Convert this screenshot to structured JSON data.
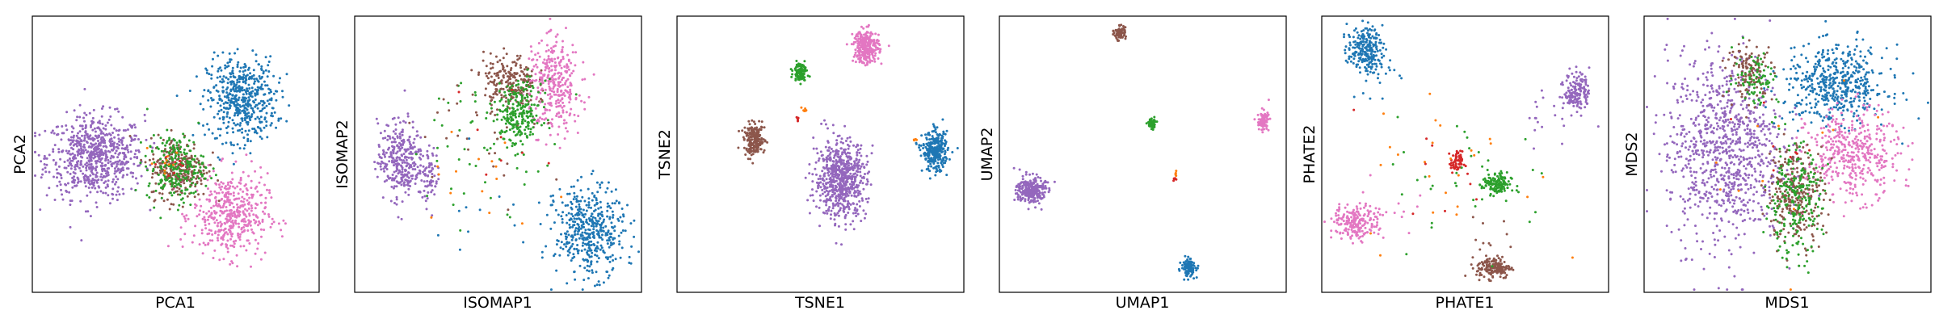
{
  "figure": {
    "colors": {
      "blue": "#1f77b4",
      "orange": "#ff7f0e",
      "green": "#2ca02c",
      "red": "#d62728",
      "purple": "#9467bd",
      "brown": "#8c564b",
      "pink": "#e377c2"
    }
  },
  "chart_data": [
    {
      "type": "scatter",
      "xlabel": "PCA1",
      "ylabel": "PCA2",
      "xlim": [
        0,
        1
      ],
      "ylim": [
        0,
        1
      ],
      "xticks": [],
      "yticks": [],
      "grid": false,
      "clusters": [
        {
          "color": "purple",
          "x": 0.22,
          "y": 0.49,
          "sx": 0.085,
          "sy": 0.075,
          "n": 700
        },
        {
          "color": "blue",
          "x": 0.73,
          "y": 0.7,
          "sx": 0.06,
          "sy": 0.075,
          "n": 500
        },
        {
          "color": "pink",
          "x": 0.69,
          "y": 0.28,
          "sx": 0.065,
          "sy": 0.075,
          "n": 450
        },
        {
          "color": "brown",
          "x": 0.51,
          "y": 0.45,
          "sx": 0.05,
          "sy": 0.055,
          "n": 280
        },
        {
          "color": "green",
          "x": 0.5,
          "y": 0.45,
          "sx": 0.05,
          "sy": 0.06,
          "n": 220
        },
        {
          "color": "orange",
          "x": 0.46,
          "y": 0.47,
          "sx": 0.04,
          "sy": 0.04,
          "n": 10
        },
        {
          "color": "red",
          "x": 0.49,
          "y": 0.46,
          "sx": 0.03,
          "sy": 0.03,
          "n": 8
        }
      ]
    },
    {
      "type": "scatter",
      "xlabel": "ISOMAP1",
      "ylabel": "ISOMAP2",
      "xlim": [
        0,
        1
      ],
      "ylim": [
        0,
        1
      ],
      "xticks": [],
      "yticks": [],
      "grid": false,
      "clusters": [
        {
          "color": "purple",
          "x": 0.16,
          "y": 0.48,
          "sx": 0.04,
          "sy": 0.07,
          "n": 320
        },
        {
          "color": "purple",
          "x": 0.26,
          "y": 0.43,
          "sx": 0.015,
          "sy": 0.05,
          "n": 60
        },
        {
          "color": "brown",
          "x": 0.54,
          "y": 0.76,
          "sx": 0.045,
          "sy": 0.05,
          "n": 220
        },
        {
          "color": "pink",
          "x": 0.7,
          "y": 0.74,
          "sx": 0.045,
          "sy": 0.08,
          "n": 280
        },
        {
          "color": "green",
          "x": 0.57,
          "y": 0.64,
          "sx": 0.04,
          "sy": 0.06,
          "n": 240
        },
        {
          "color": "blue",
          "x": 0.82,
          "y": 0.22,
          "sx": 0.06,
          "sy": 0.08,
          "n": 450
        },
        {
          "color": "green",
          "x": 0.45,
          "y": 0.55,
          "sx": 0.13,
          "sy": 0.12,
          "n": 50
        },
        {
          "color": "brown",
          "x": 0.45,
          "y": 0.6,
          "sx": 0.12,
          "sy": 0.12,
          "n": 30
        },
        {
          "color": "orange",
          "x": 0.45,
          "y": 0.45,
          "sx": 0.12,
          "sy": 0.12,
          "n": 15
        },
        {
          "color": "red",
          "x": 0.5,
          "y": 0.55,
          "sx": 0.1,
          "sy": 0.1,
          "n": 8
        },
        {
          "color": "blue",
          "x": 0.5,
          "y": 0.32,
          "sx": 0.12,
          "sy": 0.1,
          "n": 15
        },
        {
          "color": "pink",
          "x": 0.7,
          "y": 0.85,
          "sx": 0.05,
          "sy": 0.06,
          "n": 40
        }
      ]
    },
    {
      "type": "scatter",
      "xlabel": "TSNE1",
      "ylabel": "TSNE2",
      "xlim": [
        0,
        1
      ],
      "ylim": [
        0,
        1
      ],
      "xticks": [],
      "yticks": [],
      "grid": false,
      "clusters": [
        {
          "color": "purple",
          "x": 0.57,
          "y": 0.41,
          "sx": 0.045,
          "sy": 0.07,
          "n": 650
        },
        {
          "color": "blue",
          "x": 0.9,
          "y": 0.51,
          "sx": 0.022,
          "sy": 0.035,
          "n": 300
        },
        {
          "color": "pink",
          "x": 0.66,
          "y": 0.89,
          "sx": 0.022,
          "sy": 0.03,
          "n": 280
        },
        {
          "color": "brown",
          "x": 0.27,
          "y": 0.55,
          "sx": 0.018,
          "sy": 0.028,
          "n": 200
        },
        {
          "color": "green",
          "x": 0.43,
          "y": 0.8,
          "sx": 0.012,
          "sy": 0.016,
          "n": 100
        },
        {
          "color": "red",
          "x": 0.42,
          "y": 0.63,
          "sx": 0.003,
          "sy": 0.005,
          "n": 8
        },
        {
          "color": "orange",
          "x": 0.44,
          "y": 0.66,
          "sx": 0.004,
          "sy": 0.01,
          "n": 6
        },
        {
          "color": "orange",
          "x": 0.83,
          "y": 0.55,
          "sx": 0.003,
          "sy": 0.01,
          "n": 4
        }
      ]
    },
    {
      "type": "scatter",
      "xlabel": "UMAP1",
      "ylabel": "UMAP2",
      "xlim": [
        0,
        1
      ],
      "ylim": [
        0,
        1
      ],
      "xticks": [],
      "yticks": [],
      "grid": false,
      "clusters": [
        {
          "color": "purple",
          "x": 0.11,
          "y": 0.37,
          "sx": 0.025,
          "sy": 0.025,
          "n": 250
        },
        {
          "color": "brown",
          "x": 0.42,
          "y": 0.94,
          "sx": 0.01,
          "sy": 0.012,
          "n": 80
        },
        {
          "color": "green",
          "x": 0.53,
          "y": 0.61,
          "sx": 0.007,
          "sy": 0.009,
          "n": 60
        },
        {
          "color": "pink",
          "x": 0.92,
          "y": 0.62,
          "sx": 0.01,
          "sy": 0.018,
          "n": 90
        },
        {
          "color": "blue",
          "x": 0.66,
          "y": 0.09,
          "sx": 0.012,
          "sy": 0.016,
          "n": 110
        },
        {
          "color": "red",
          "x": 0.61,
          "y": 0.41,
          "sx": 0.003,
          "sy": 0.003,
          "n": 5
        },
        {
          "color": "orange",
          "x": 0.615,
          "y": 0.43,
          "sx": 0.002,
          "sy": 0.008,
          "n": 5
        }
      ]
    },
    {
      "type": "scatter",
      "xlabel": "PHATE1",
      "ylabel": "PHATE2",
      "xlim": [
        0,
        1
      ],
      "ylim": [
        0,
        1
      ],
      "xticks": [],
      "yticks": [],
      "grid": false,
      "clusters": [
        {
          "color": "blue",
          "x": 0.15,
          "y": 0.88,
          "sx": 0.03,
          "sy": 0.04,
          "n": 220
        },
        {
          "color": "purple",
          "x": 0.89,
          "y": 0.73,
          "sx": 0.022,
          "sy": 0.035,
          "n": 150
        },
        {
          "color": "pink",
          "x": 0.12,
          "y": 0.25,
          "sx": 0.04,
          "sy": 0.03,
          "n": 200
        },
        {
          "color": "green",
          "x": 0.61,
          "y": 0.39,
          "sx": 0.025,
          "sy": 0.02,
          "n": 140
        },
        {
          "color": "red",
          "x": 0.47,
          "y": 0.47,
          "sx": 0.01,
          "sy": 0.02,
          "n": 60
        },
        {
          "color": "brown",
          "x": 0.6,
          "y": 0.09,
          "sx": 0.03,
          "sy": 0.02,
          "n": 160
        },
        {
          "color": "green",
          "x": 0.55,
          "y": 0.4,
          "sx": 0.15,
          "sy": 0.12,
          "n": 35
        },
        {
          "color": "orange",
          "x": 0.45,
          "y": 0.45,
          "sx": 0.15,
          "sy": 0.15,
          "n": 25
        },
        {
          "color": "red",
          "x": 0.45,
          "y": 0.45,
          "sx": 0.1,
          "sy": 0.1,
          "n": 10
        },
        {
          "color": "blue",
          "x": 0.2,
          "y": 0.8,
          "sx": 0.05,
          "sy": 0.06,
          "n": 25
        },
        {
          "color": "purple",
          "x": 0.8,
          "y": 0.65,
          "sx": 0.06,
          "sy": 0.06,
          "n": 20
        },
        {
          "color": "pink",
          "x": 0.2,
          "y": 0.3,
          "sx": 0.06,
          "sy": 0.05,
          "n": 25
        },
        {
          "color": "brown",
          "x": 0.58,
          "y": 0.18,
          "sx": 0.05,
          "sy": 0.05,
          "n": 15
        }
      ]
    },
    {
      "type": "scatter",
      "xlabel": "MDS1",
      "ylabel": "MDS2",
      "xlim": [
        0,
        1
      ],
      "ylim": [
        0,
        1
      ],
      "xticks": [],
      "yticks": [],
      "grid": false,
      "clusters": [
        {
          "color": "purple",
          "x": 0.28,
          "y": 0.52,
          "sx": 0.1,
          "sy": 0.17,
          "n": 900
        },
        {
          "color": "blue",
          "x": 0.67,
          "y": 0.75,
          "sx": 0.09,
          "sy": 0.07,
          "n": 500
        },
        {
          "color": "pink",
          "x": 0.73,
          "y": 0.5,
          "sx": 0.08,
          "sy": 0.08,
          "n": 420
        },
        {
          "color": "brown",
          "x": 0.53,
          "y": 0.36,
          "sx": 0.05,
          "sy": 0.09,
          "n": 260
        },
        {
          "color": "green",
          "x": 0.52,
          "y": 0.33,
          "sx": 0.05,
          "sy": 0.1,
          "n": 240
        },
        {
          "color": "brown",
          "x": 0.37,
          "y": 0.8,
          "sx": 0.04,
          "sy": 0.05,
          "n": 120
        },
        {
          "color": "green",
          "x": 0.39,
          "y": 0.78,
          "sx": 0.04,
          "sy": 0.05,
          "n": 80
        },
        {
          "color": "orange",
          "x": 0.5,
          "y": 0.5,
          "sx": 0.15,
          "sy": 0.15,
          "n": 12
        },
        {
          "color": "red",
          "x": 0.5,
          "y": 0.5,
          "sx": 0.12,
          "sy": 0.12,
          "n": 8
        }
      ]
    }
  ]
}
